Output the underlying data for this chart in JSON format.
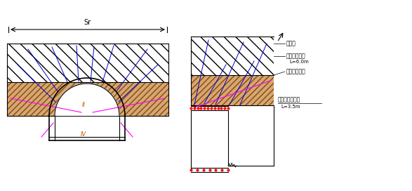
{
  "bg_color": "#ffffff",
  "black": "#000000",
  "blue": "#0000cd",
  "pink": "#ff00ff",
  "red": "#ff0000",
  "brown_face": "#d4a870",
  "label_Sr": "Sr",
  "label_II": "II",
  "label_IV": "IV",
  "text_shashaceng": "砂砂层",
  "text_daoguan": "超前注浆导管",
  "text_L60": "L=6.0m",
  "text_niantu": "砖质展性土层",
  "text_xiaodaoguan": "超前注浆小导管",
  "text_L35": "L=3.5m"
}
